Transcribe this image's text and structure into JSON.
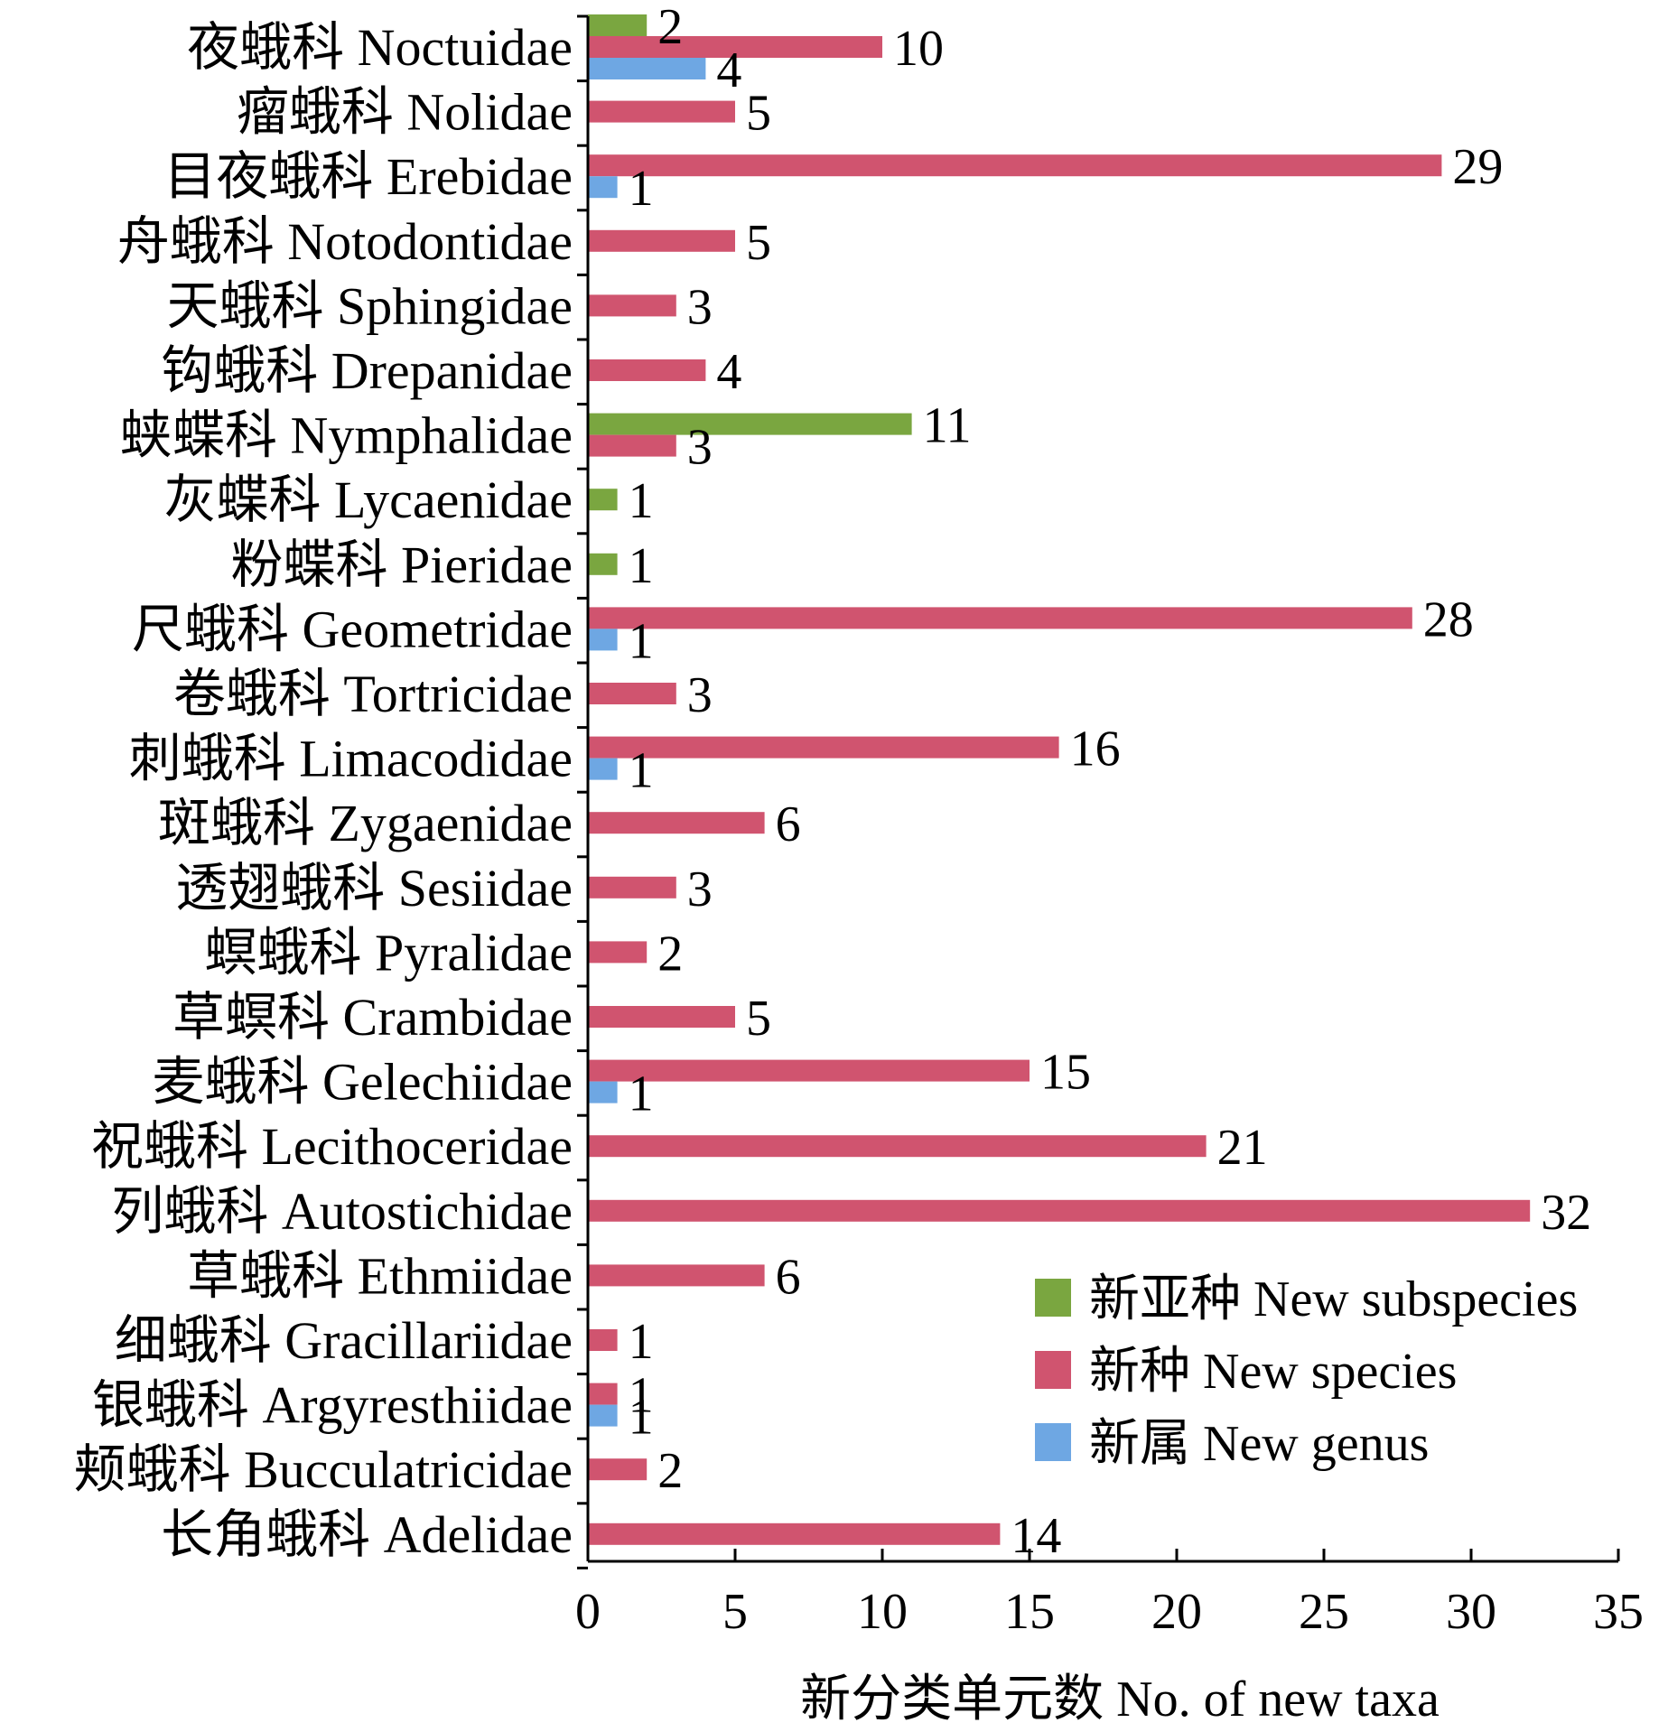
{
  "chart_data": {
    "type": "bar",
    "orientation": "horizontal",
    "xlabel": "新分类单元数 No. of new taxa",
    "ylabel": "",
    "xlim": [
      0,
      35
    ],
    "xticks": [
      "0",
      "5",
      "10",
      "15",
      "20",
      "25",
      "30",
      "35"
    ],
    "grid": false,
    "legend_position": "bottom-right",
    "categories": [
      "夜蛾科 Noctuidae",
      "瘤蛾科 Nolidae",
      "目夜蛾科 Erebidae",
      "舟蛾科 Notodontidae",
      "天蛾科 Sphingidae",
      "钩蛾科 Drepanidae",
      "蛱蝶科 Nymphalidae",
      "灰蝶科 Lycaenidae",
      "粉蝶科 Pieridae",
      "尺蛾科 Geometridae",
      "卷蛾科 Tortricidae",
      "刺蛾科 Limacodidae",
      "斑蛾科 Zygaenidae",
      "透翅蛾科 Sesiidae",
      "螟蛾科 Pyralidae",
      "草螟科 Crambidae",
      "麦蛾科 Gelechiidae",
      "祝蛾科 Lecithoceridae",
      "列蛾科 Autostichidae",
      "草蛾科 Ethmiidae",
      "细蛾科 Gracillariidae",
      "银蛾科 Argyresthiidae",
      "颊蛾科 Bucculatricidae",
      "长角蛾科 Adelidae"
    ],
    "series": [
      {
        "name": "新亚种 New subspecies",
        "color": "#7aa640",
        "values": [
          2,
          null,
          null,
          null,
          null,
          null,
          11,
          1,
          1,
          null,
          null,
          null,
          null,
          null,
          null,
          null,
          null,
          null,
          null,
          null,
          null,
          null,
          null,
          null
        ]
      },
      {
        "name": "新种 New species",
        "color": "#d0546f",
        "values": [
          10,
          5,
          29,
          5,
          3,
          4,
          3,
          null,
          null,
          28,
          3,
          16,
          6,
          3,
          2,
          5,
          15,
          21,
          32,
          6,
          1,
          1,
          2,
          14
        ]
      },
      {
        "name": "新属 New genus",
        "color": "#6ea7e3",
        "values": [
          4,
          null,
          1,
          null,
          null,
          null,
          null,
          null,
          null,
          1,
          null,
          1,
          null,
          null,
          null,
          null,
          1,
          null,
          null,
          null,
          null,
          1,
          null,
          null
        ]
      }
    ]
  }
}
